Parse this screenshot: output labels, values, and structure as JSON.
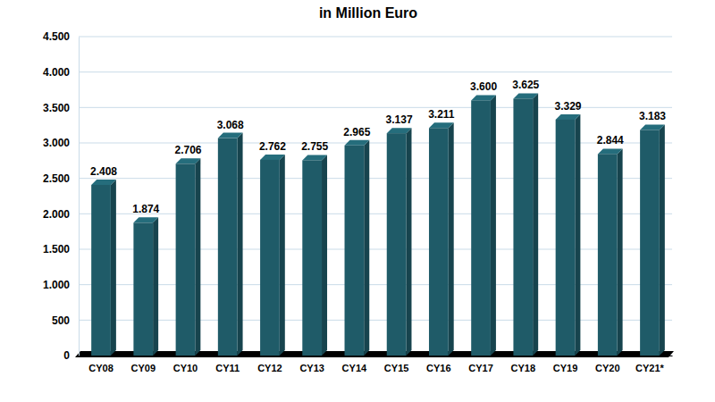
{
  "chart_data": {
    "type": "bar",
    "title": "in Million Euro",
    "categories": [
      "CY08",
      "CY09",
      "CY10",
      "CY11",
      "CY12",
      "CY13",
      "CY14",
      "CY15",
      "CY16",
      "CY17",
      "CY18",
      "CY19",
      "CY20",
      "CY21*"
    ],
    "values": [
      2408,
      1874,
      2706,
      3068,
      2762,
      2755,
      2965,
      3137,
      3211,
      3600,
      3625,
      3329,
      2844,
      3183
    ],
    "value_labels": [
      "2.408",
      "1.874",
      "2.706",
      "3.068",
      "2.762",
      "2.755",
      "2.965",
      "3.137",
      "3.211",
      "3.600",
      "3.625",
      "3.329",
      "2.844",
      "3.183"
    ],
    "color": "#1f5b68",
    "ylim": [
      0,
      4500
    ],
    "yticks": [
      0,
      {
        "value": 500,
        "label": "500"
      },
      {
        "value": 1000,
        "label": "1.000"
      },
      {
        "value": 1500,
        "label": "1.500"
      },
      {
        "value": 2000,
        "label": "2.000"
      },
      {
        "value": 2500,
        "label": "2.500"
      },
      {
        "value": 3000,
        "label": "3.000"
      },
      {
        "value": 3500,
        "label": "3.500"
      },
      {
        "value": 4000,
        "label": "4.000"
      },
      {
        "value": 4500,
        "label": "4.500"
      }
    ],
    "grid": true,
    "data_labels": true
  }
}
